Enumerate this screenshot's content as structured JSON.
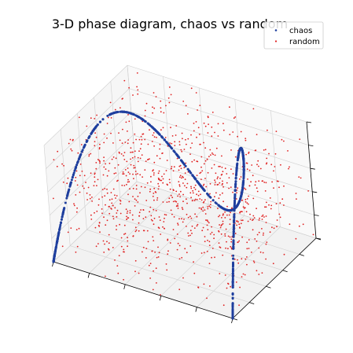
{
  "chart_data": {
    "type": "scatter",
    "projection": "3d",
    "title": "3-D phase diagram, chaos vs random",
    "xlabel": "",
    "ylabel": "",
    "zlabel": "",
    "xlim": [
      0,
      1
    ],
    "ylim": [
      0,
      1
    ],
    "zlim": [
      0,
      1
    ],
    "grid": true,
    "tick_labels_visible": false,
    "legend": {
      "position": "top-right",
      "entries": [
        "chaos",
        "random"
      ]
    },
    "series": [
      {
        "name": "chaos",
        "kind": "logistic-map phase trajectory (x_t, x_t+1, x_t+2), r = 4",
        "color": "#1f3f9e",
        "marker_size": 1.5,
        "point_count": 1000
      },
      {
        "name": "random",
        "kind": "uniform random points",
        "color": "#e02020",
        "marker_size": 0.9,
        "point_count": 1000
      }
    ]
  }
}
